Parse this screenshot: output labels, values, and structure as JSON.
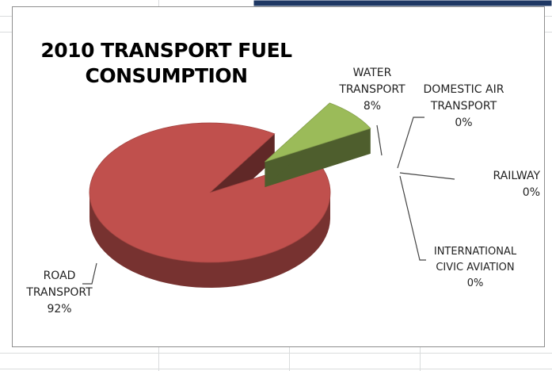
{
  "chart_data": {
    "type": "pie3d",
    "title": "2010 TRANSPORT FUEL CONSUMPTION",
    "categories": [
      "ROAD TRANSPORT",
      "WATER TRANSPORT",
      "DOMESTIC AIR TRANSPORT",
      "RAILWAY",
      "INTERNATIONAL CIVIC AVIATION"
    ],
    "values": [
      92,
      8,
      0,
      0,
      0
    ],
    "value_labels": [
      "92%",
      "8%",
      "0%",
      "0%",
      "0%"
    ],
    "colors": [
      "#c0504d",
      "#9bbb59",
      "#8064a2",
      "#1f3a5f",
      "#4bacc6"
    ]
  }
}
